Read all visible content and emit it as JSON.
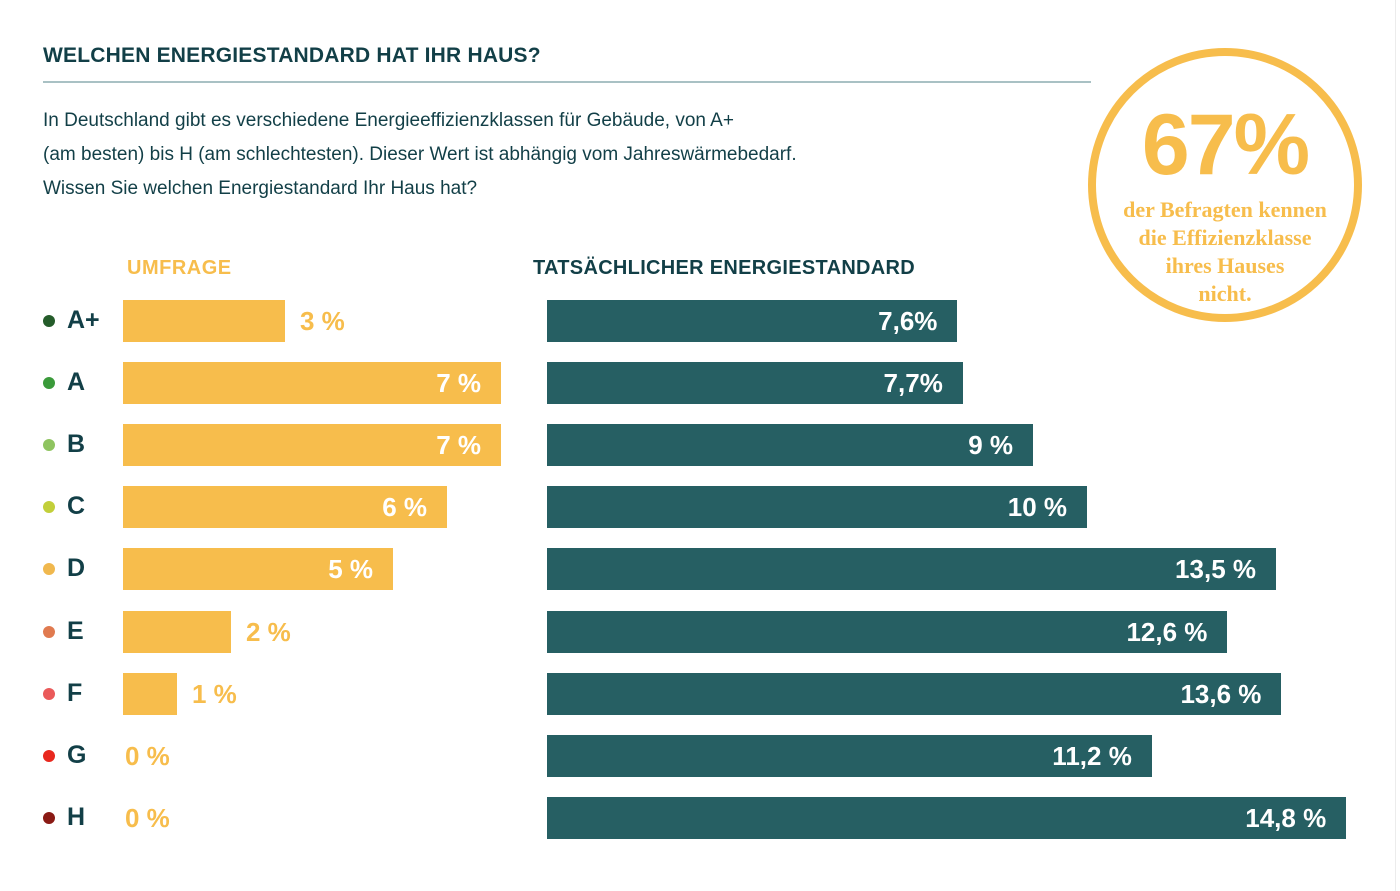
{
  "header": {
    "title": "WELCHEN ENERGIESTANDARD HAT IHR HAUS?",
    "description_lines": [
      "In Deutschland gibt es verschiedene Energieeffizienzklassen für Gebäude, von A+",
      "(am besten) bis H (am schlechtesten). Dieser Wert ist abhängig vom Jahreswärmebedarf.",
      "Wissen Sie welchen Energiestandard Ihr Haus hat?"
    ]
  },
  "callout": {
    "value": "67%",
    "text_lines": [
      "der Befragten kennen",
      "die Effizienzklasse",
      "ihres Hauses",
      "nicht."
    ]
  },
  "colors": {
    "survey": "#f7bd4c",
    "actual": "#265f63",
    "text": "#123f47"
  },
  "chart_data": [
    {
      "type": "bar",
      "orientation": "horizontal",
      "title": "UMFRAGE",
      "categories": [
        "A+",
        "A",
        "B",
        "C",
        "D",
        "E",
        "F",
        "G",
        "H"
      ],
      "category_colors": [
        "#245c2a",
        "#3a9a3a",
        "#8fc460",
        "#c2cf3a",
        "#f0b84e",
        "#e07a4f",
        "#ea5a5a",
        "#e8281e",
        "#8a1a14"
      ],
      "values": [
        3,
        7,
        7,
        6,
        5,
        2,
        1,
        0,
        0
      ],
      "labels": [
        "3 %",
        "7 %",
        "7 %",
        "6 %",
        "5 %",
        "2 %",
        "1 %",
        "0 %",
        "0 %"
      ],
      "unit": "%",
      "xlabel": "",
      "ylabel": "",
      "grid": false
    },
    {
      "type": "bar",
      "orientation": "horizontal",
      "title": "TATSÄCHLICHER ENERGIESTANDARD",
      "categories": [
        "A+",
        "A",
        "B",
        "C",
        "D",
        "E",
        "F",
        "G",
        "H"
      ],
      "values": [
        7.6,
        7.7,
        9,
        10,
        13.5,
        12.6,
        13.6,
        11.2,
        14.8
      ],
      "labels": [
        "7,6%",
        "7,7%",
        "9 %",
        "10 %",
        "13,5 %",
        "12,6 %",
        "13,6 %",
        "11,2 %",
        "14,8 %"
      ],
      "unit": "%",
      "xlabel": "",
      "ylabel": "",
      "grid": false
    }
  ]
}
